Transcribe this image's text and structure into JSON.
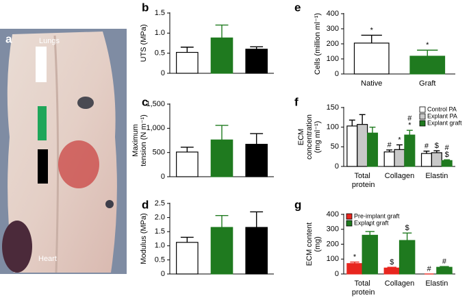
{
  "photo": {
    "panel": "a",
    "top_label": "Lungs",
    "bottom_label": "Heart"
  },
  "chart_data": [
    {
      "type": "bar",
      "panel": "b",
      "ylabel": [
        "UTS (MPa)"
      ],
      "ylim": [
        0,
        1.5
      ],
      "yticks": [
        0,
        0.5,
        {
          "value": 1,
          "label": "1.0"
        },
        1.5
      ],
      "series": [
        {
          "colors": [
            "#ffffff",
            "#1f7a1f",
            "#000000"
          ],
          "values": [
            0.52,
            0.88,
            0.6
          ],
          "errors": [
            0.13,
            0.32,
            0.06
          ]
        }
      ]
    },
    {
      "type": "bar",
      "panel": "c",
      "ylabel": [
        "Maximum",
        "tension (N m⁻¹)"
      ],
      "ylim": [
        0,
        1500
      ],
      "yticks": [
        0,
        500,
        {
          "value": 1000,
          "label": "1,000"
        },
        {
          "value": 1500,
          "label": "1,500"
        }
      ],
      "series": [
        {
          "colors": [
            "#ffffff",
            "#1f7a1f",
            "#000000"
          ],
          "values": [
            510,
            760,
            670
          ],
          "errors": [
            100,
            300,
            220
          ]
        }
      ]
    },
    {
      "type": "bar",
      "panel": "d",
      "ylabel": [
        "Modulus (MPa)"
      ],
      "ylim": [
        0,
        2.5
      ],
      "yticks": [
        0,
        0.5,
        {
          "value": 1,
          "label": "1.0"
        },
        1.5,
        {
          "value": 2,
          "label": "2.0"
        },
        2.5
      ],
      "series": [
        {
          "colors": [
            "#ffffff",
            "#1f7a1f",
            "#000000"
          ],
          "values": [
            1.12,
            1.65,
            1.65
          ],
          "errors": [
            0.18,
            0.42,
            0.55
          ]
        }
      ]
    },
    {
      "type": "bar",
      "panel": "e",
      "ylabel": [
        "Cells (million ml⁻¹)"
      ],
      "ylim": [
        0,
        400
      ],
      "yticks": [
        0,
        100,
        200,
        300,
        400
      ],
      "categories": [
        "Native",
        "Graft"
      ],
      "series": [
        {
          "colors": [
            "#ffffff",
            "#1f7a1f"
          ],
          "values": [
            205,
            118
          ],
          "errors": [
            52,
            40
          ],
          "annotations": [
            [
              "*"
            ],
            [
              "*"
            ]
          ]
        }
      ]
    },
    {
      "type": "bar",
      "panel": "f",
      "ylabel": [
        "ECM",
        "concentration",
        "(mg ml⁻¹)"
      ],
      "ylim": [
        0,
        150
      ],
      "yticks": [
        0,
        50,
        100,
        150
      ],
      "categories": [
        "Total protein",
        "Collagen",
        "Elastin"
      ],
      "legend": "upper right",
      "series": [
        {
          "name": "Control PA",
          "color": "#ffffff",
          "values": [
            103,
            37,
            33
          ],
          "errors": [
            15,
            5,
            6
          ],
          "annotations": [
            null,
            [
              "#"
            ],
            [
              "#"
            ]
          ]
        },
        {
          "name": "Explant PA",
          "color": "#c8c8c8",
          "values": [
            107,
            43,
            35
          ],
          "errors": [
            25,
            12,
            5
          ],
          "annotations": [
            null,
            [
              "*"
            ],
            [
              "$"
            ]
          ]
        },
        {
          "name": "Explant graft",
          "color": "#1f7a1f",
          "values": [
            85,
            80,
            15
          ],
          "errors": [
            15,
            12,
            2
          ],
          "annotations": [
            null,
            [
              "#",
              "*"
            ],
            [
              "#",
              "$"
            ]
          ]
        }
      ]
    },
    {
      "type": "bar",
      "panel": "g",
      "ylabel": [
        "ECM content",
        "(mg)"
      ],
      "ylim": [
        0,
        400
      ],
      "yticks": [
        0,
        100,
        200,
        300,
        400
      ],
      "categories": [
        "Total protein",
        "Collagen",
        "Elastin"
      ],
      "legend": "upper left",
      "series": [
        {
          "name": "Pre-implant graft",
          "color": "#e8261f",
          "values": [
            70,
            40,
            0
          ],
          "errors": [
            10,
            5,
            0
          ],
          "annotations": [
            [
              "*"
            ],
            [
              "$"
            ],
            [
              "#"
            ]
          ]
        },
        {
          "name": "Explant graft",
          "color": "#1f7a1f",
          "values": [
            260,
            225,
            45
          ],
          "errors": [
            25,
            50,
            5
          ],
          "annotations": [
            [
              "*"
            ],
            [
              "$"
            ],
            [
              "#"
            ]
          ]
        }
      ]
    }
  ]
}
